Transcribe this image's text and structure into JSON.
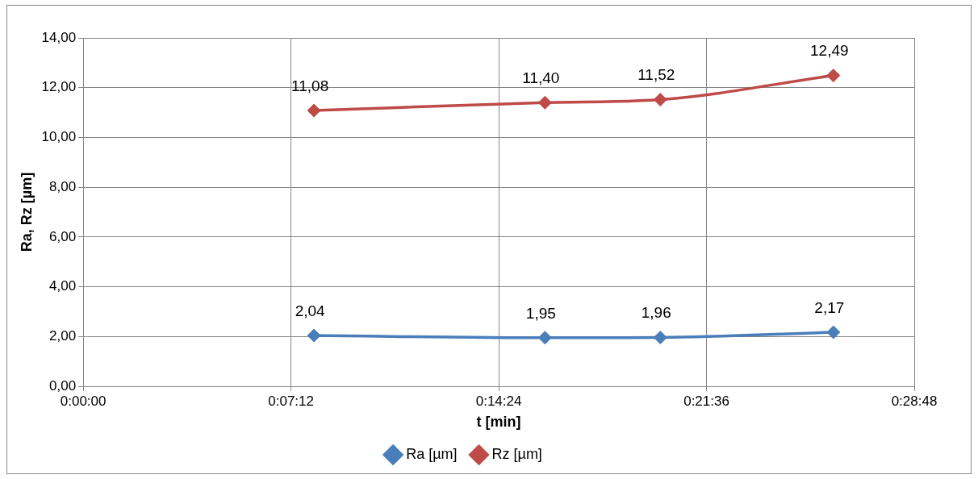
{
  "chart_data": {
    "type": "line",
    "xlabel": "t [min]",
    "ylabel": "Ra, Rz [µm]",
    "x": [
      0.1333,
      0.2667,
      0.3333,
      0.4333
    ],
    "series": [
      {
        "name": "Ra [µm]",
        "color": "#4a7ebb",
        "values": [
          2.04,
          1.95,
          1.96,
          2.17
        ],
        "value_labels": [
          "2,04",
          "1,95",
          "1,96",
          "2,17"
        ]
      },
      {
        "name": "Rz [µm]",
        "color": "#be4b48",
        "values": [
          11.08,
          11.4,
          11.52,
          12.49
        ],
        "value_labels": [
          "11,08",
          "11,40",
          "11,52",
          "12,49"
        ]
      }
    ],
    "xlim": [
      0,
      0.48
    ],
    "xticks": [
      {
        "value": 0,
        "label": "0:00:00"
      },
      {
        "value": 0.12,
        "label": "0:07:12"
      },
      {
        "value": 0.24,
        "label": "0:14:24"
      },
      {
        "value": 0.36,
        "label": "0:21:36"
      },
      {
        "value": 0.48,
        "label": "0:28:48"
      }
    ],
    "ylim": [
      0,
      14
    ],
    "yticks": [
      {
        "value": 0,
        "label": "0,00"
      },
      {
        "value": 2,
        "label": "2,00"
      },
      {
        "value": 4,
        "label": "4,00"
      },
      {
        "value": 6,
        "label": "6,00"
      },
      {
        "value": 8,
        "label": "8,00"
      },
      {
        "value": 10,
        "label": "10,00"
      },
      {
        "value": 12,
        "label": "12,00"
      },
      {
        "value": 14,
        "label": "14,00"
      }
    ],
    "grid": true,
    "legend": "bottom",
    "marker": "diamond",
    "line_style": "solid"
  }
}
